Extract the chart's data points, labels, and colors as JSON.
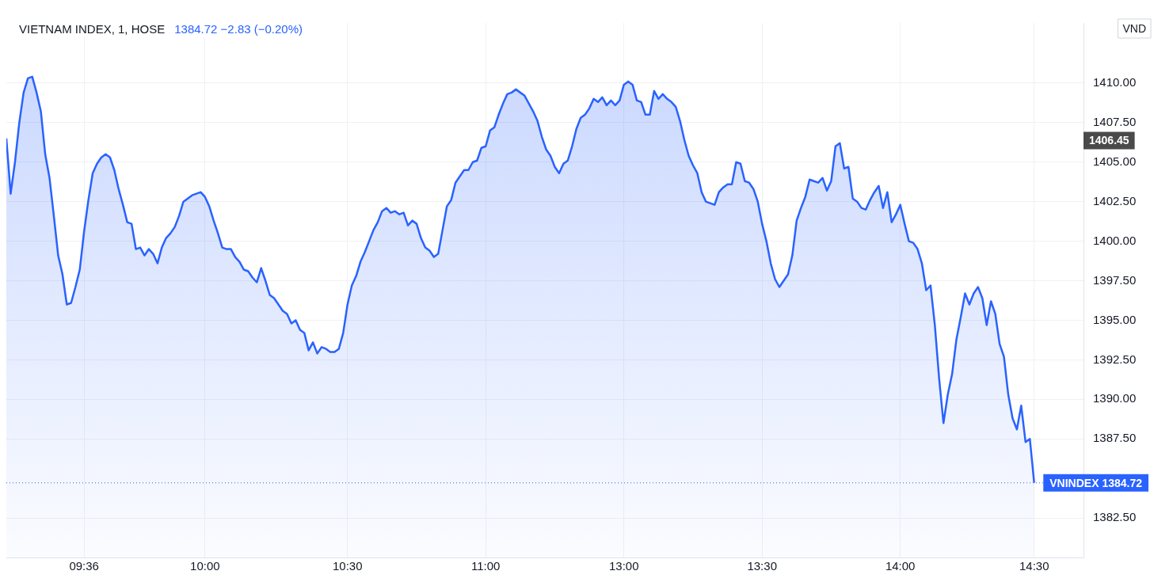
{
  "chart_data": {
    "type": "area",
    "title": "VIETNAM INDEX, 1, HOSE",
    "subtitle": "1384.72 −2.83 (−0.20%)",
    "categories": [
      null,
      null,
      null,
      null,
      null,
      null,
      null,
      null,
      null,
      null,
      null,
      null,
      null,
      null,
      null,
      null,
      null,
      null,
      "09:36",
      null,
      null,
      null,
      null,
      null,
      null,
      null,
      null,
      null,
      null,
      null,
      null,
      null,
      null,
      null,
      null,
      null,
      null,
      null,
      null,
      null,
      null,
      null,
      null,
      null,
      null,
      null,
      "10:00",
      null,
      null,
      null,
      null,
      null,
      null,
      null,
      null,
      null,
      null,
      null,
      null,
      null,
      null,
      null,
      null,
      null,
      null,
      null,
      null,
      null,
      null,
      null,
      null,
      null,
      null,
      null,
      null,
      null,
      null,
      null,
      null,
      "10:30",
      null,
      null,
      null,
      null,
      null,
      null,
      null,
      null,
      null,
      null,
      null,
      null,
      null,
      null,
      null,
      null,
      null,
      null,
      null,
      null,
      null,
      null,
      null,
      null,
      null,
      null,
      null,
      null,
      null,
      null,
      null,
      "11:00",
      null,
      null,
      null,
      null,
      null,
      null,
      null,
      null,
      null,
      null,
      null,
      null,
      null,
      null,
      null,
      null,
      null,
      null,
      null,
      null,
      null,
      null,
      null,
      null,
      null,
      null,
      null,
      null,
      null,
      null,
      null,
      "13:00",
      null,
      null,
      null,
      null,
      null,
      null,
      null,
      null,
      null,
      null,
      null,
      null,
      null,
      null,
      null,
      null,
      null,
      null,
      null,
      null,
      null,
      null,
      null,
      null,
      null,
      null,
      null,
      null,
      null,
      null,
      null,
      "13:30",
      null,
      null,
      null,
      null,
      null,
      null,
      null,
      null,
      null,
      null,
      null,
      null,
      null,
      null,
      null,
      null,
      null,
      null,
      null,
      null,
      null,
      null,
      null,
      null,
      null,
      null,
      null,
      null,
      null,
      null,
      null,
      "14:00",
      null,
      null,
      null,
      null,
      null,
      null,
      null,
      null,
      null,
      null,
      null,
      null,
      null,
      null,
      null,
      null,
      null,
      null,
      null,
      null,
      null,
      null,
      null,
      null,
      null,
      null,
      null,
      null,
      null,
      null,
      "14:30"
    ],
    "series": [
      {
        "color": "#2962ff",
        "values": [
          1406.5,
          1403.0,
          1405.0,
          1407.5,
          1409.4,
          1410.3,
          1410.4,
          1409.4,
          1408.2,
          1405.5,
          1404.0,
          1401.6,
          1399.1,
          1397.9,
          1396.0,
          1396.1,
          1397.1,
          1398.2,
          1400.6,
          1402.6,
          1404.3,
          1404.9,
          1405.3,
          1405.5,
          1405.3,
          1404.5,
          1403.3,
          1402.3,
          1401.2,
          1401.1,
          1399.5,
          1399.6,
          1399.1,
          1399.5,
          1399.2,
          1398.6,
          1399.6,
          1400.2,
          1400.5,
          1400.9,
          1401.6,
          1402.5,
          1402.7,
          1402.9,
          1403.0,
          1403.1,
          1402.8,
          1402.2,
          1401.3,
          1400.5,
          1399.6,
          1399.5,
          1399.5,
          1399.0,
          1398.7,
          1398.2,
          1398.1,
          1397.7,
          1397.4,
          1398.3,
          1397.5,
          1396.6,
          1396.4,
          1396.0,
          1395.6,
          1395.4,
          1394.8,
          1395.0,
          1394.4,
          1394.2,
          1393.1,
          1393.6,
          1392.9,
          1393.3,
          1393.2,
          1393.0,
          1393.0,
          1393.2,
          1394.2,
          1396.0,
          1397.2,
          1397.8,
          1398.7,
          1399.3,
          1400.0,
          1400.7,
          1401.2,
          1401.9,
          1402.1,
          1401.8,
          1401.9,
          1401.7,
          1401.8,
          1401.0,
          1401.3,
          1401.1,
          1400.2,
          1399.6,
          1399.4,
          1399.0,
          1399.2,
          1400.7,
          1402.2,
          1402.6,
          1403.7,
          1404.1,
          1404.5,
          1404.5,
          1405.0,
          1405.1,
          1405.9,
          1406.0,
          1407.0,
          1407.2,
          1408.0,
          1408.7,
          1409.3,
          1409.4,
          1409.6,
          1409.4,
          1409.2,
          1408.7,
          1408.2,
          1407.6,
          1406.6,
          1405.8,
          1405.4,
          1404.7,
          1404.3,
          1404.9,
          1405.1,
          1406.0,
          1407.1,
          1407.8,
          1408.0,
          1408.4,
          1409.0,
          1408.8,
          1409.1,
          1408.6,
          1408.9,
          1408.6,
          1408.9,
          1409.9,
          1410.1,
          1409.9,
          1408.9,
          1408.8,
          1408.0,
          1408.0,
          1409.5,
          1409.0,
          1409.3,
          1409.0,
          1408.8,
          1408.5,
          1407.6,
          1406.4,
          1405.4,
          1404.8,
          1404.3,
          1403.1,
          1402.5,
          1402.4,
          1402.3,
          1403.1,
          1403.4,
          1403.6,
          1403.6,
          1405.0,
          1404.9,
          1403.8,
          1403.7,
          1403.3,
          1402.5,
          1401.1,
          1400.0,
          1398.6,
          1397.6,
          1397.1,
          1397.5,
          1397.9,
          1399.1,
          1401.3,
          1402.1,
          1402.8,
          1403.9,
          1403.8,
          1403.7,
          1404.0,
          1403.2,
          1403.8,
          1406.0,
          1406.2,
          1404.6,
          1404.7,
          1402.7,
          1402.5,
          1402.1,
          1402.0,
          1402.6,
          1403.1,
          1403.5,
          1402.1,
          1403.1,
          1401.2,
          1401.7,
          1402.3,
          1401.1,
          1400.0,
          1399.9,
          1399.5,
          1398.6,
          1396.9,
          1397.2,
          1394.7,
          1391.3,
          1388.5,
          1390.3,
          1391.6,
          1393.8,
          1395.2,
          1396.7,
          1396.0,
          1396.7,
          1397.1,
          1396.4,
          1394.7,
          1396.2,
          1395.4,
          1393.5,
          1392.7,
          1390.3,
          1388.8,
          1388.1,
          1389.6,
          1387.3,
          1387.5,
          1384.72
        ]
      }
    ],
    "ylim": [
      1380,
      1413.8
    ],
    "yticks": [
      {
        "value": 1382.5,
        "label": "1382.50"
      },
      {
        "value": 1387.5,
        "label": "1387.50"
      },
      {
        "value": 1390,
        "label": "1390.00"
      },
      {
        "value": 1392.5,
        "label": "1392.50"
      },
      {
        "value": 1395,
        "label": "1395.00"
      },
      {
        "value": 1397.5,
        "label": "1397.50"
      },
      {
        "value": 1400,
        "label": "1400.00"
      },
      {
        "value": 1402.5,
        "label": "1402.50"
      },
      {
        "value": 1405,
        "label": "1405.00"
      },
      {
        "value": 1407.5,
        "label": "1407.50"
      },
      {
        "value": 1410,
        "label": "1410.00"
      }
    ],
    "ref_lines": [
      {
        "axis": "y",
        "value": 1384.72,
        "label": "VNINDEX 1384.72",
        "color": "#2962ff",
        "line_style": "dotted"
      }
    ],
    "annotations": [
      "VND",
      "1406.45"
    ],
    "grid": true,
    "legend": false,
    "marker": "none",
    "line_style": "solid"
  }
}
